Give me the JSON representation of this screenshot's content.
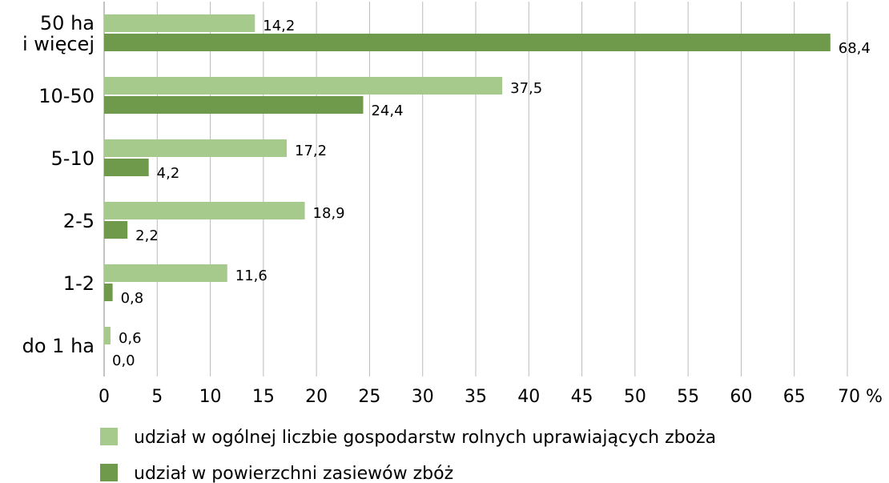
{
  "chart_data": {
    "type": "hbar",
    "categories": [
      "50 ha\ni więcej",
      "10-50",
      "5-10",
      "2-5",
      "1-2",
      "do 1 ha"
    ],
    "series": [
      {
        "name": "udział w ogólnej liczbie gospodarstw  rolnych uprawiających  zboża",
        "color": "#a6ca8c",
        "values": [
          14.2,
          37.5,
          17.2,
          18.9,
          11.6,
          0.6
        ],
        "value_labels": [
          "14,2",
          "37,5",
          "17,2",
          "18,9",
          "11,6",
          "0,6"
        ]
      },
      {
        "name": "udział w powierzchni zasiewów  zbóż",
        "color": "#6f9a4c",
        "values": [
          68.4,
          24.4,
          4.2,
          2.2,
          0.8,
          0.0
        ],
        "value_labels": [
          "68,4",
          "24,4",
          "4,2",
          "2,2",
          "0,8",
          "0,0"
        ]
      }
    ],
    "xlim": [
      0,
      70
    ],
    "xticks": [
      0,
      5,
      10,
      15,
      20,
      25,
      30,
      35,
      40,
      45,
      50,
      55,
      60,
      65,
      {
        "value": 70,
        "label": "70 %"
      }
    ],
    "grid": true
  }
}
